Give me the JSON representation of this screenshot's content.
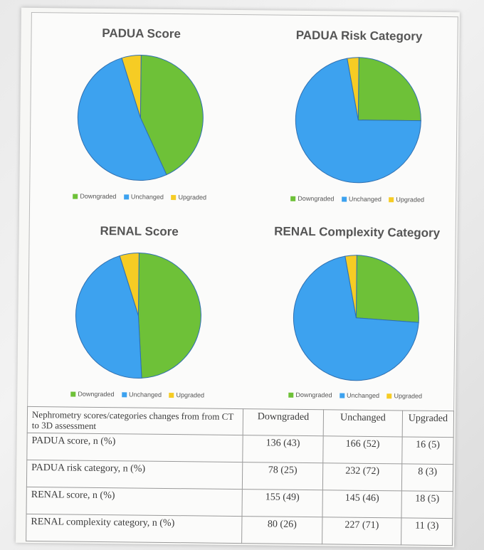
{
  "colors": {
    "Downgraded": "#6ec138",
    "Unchanged": "#3da2ef",
    "Upgraded": "#f6cc24"
  },
  "chart_data": [
    {
      "type": "pie",
      "title": "PADUA Score",
      "categories": [
        "Downgraded",
        "Unchanged",
        "Upgraded"
      ],
      "values": [
        43,
        52,
        5
      ],
      "legend": [
        "Downgraded",
        "Unchanged",
        "Upgraded"
      ],
      "legend_position": "bottom"
    },
    {
      "type": "pie",
      "title": "PADUA Risk Category",
      "categories": [
        "Downgraded",
        "Unchanged",
        "Upgraded"
      ],
      "values": [
        25,
        72,
        3
      ],
      "legend": [
        "Downgraded",
        "Unchanged",
        "Upgraded"
      ],
      "legend_position": "bottom"
    },
    {
      "type": "pie",
      "title": "RENAL Score",
      "categories": [
        "Downgraded",
        "Unchanged",
        "Upgraded"
      ],
      "values": [
        49,
        46,
        5
      ],
      "legend": [
        "Downgraded",
        "Unchanged",
        "Upgraded"
      ],
      "legend_position": "bottom"
    },
    {
      "type": "pie",
      "title": "RENAL Complexity Category",
      "categories": [
        "Downgraded",
        "Unchanged",
        "Upgraded"
      ],
      "values": [
        26,
        71,
        3
      ],
      "legend": [
        "Downgraded",
        "Unchanged",
        "Upgraded"
      ],
      "legend_position": "bottom"
    }
  ],
  "table": {
    "header": {
      "first": "Nephrometry scores/categories changes from from CT to 3D assessment",
      "downgraded": "Downgraded",
      "unchanged": "Unchanged",
      "upgraded": "Upgraded"
    },
    "rows": [
      {
        "label": "PADUA score, n (%)",
        "downgraded": "136 (43)",
        "unchanged": "166 (52)",
        "upgraded": "16 (5)"
      },
      {
        "label": "PADUA risk category, n (%)",
        "downgraded": "78 (25)",
        "unchanged": "232 (72)",
        "upgraded": "8 (3)"
      },
      {
        "label": "RENAL score, n (%)",
        "downgraded": "155 (49)",
        "unchanged": "145 (46)",
        "upgraded": "18 (5)"
      },
      {
        "label": "RENAL complexity category, n (%)",
        "downgraded": "80 (26)",
        "unchanged": "227 (71)",
        "upgraded": "11 (3)"
      }
    ]
  }
}
